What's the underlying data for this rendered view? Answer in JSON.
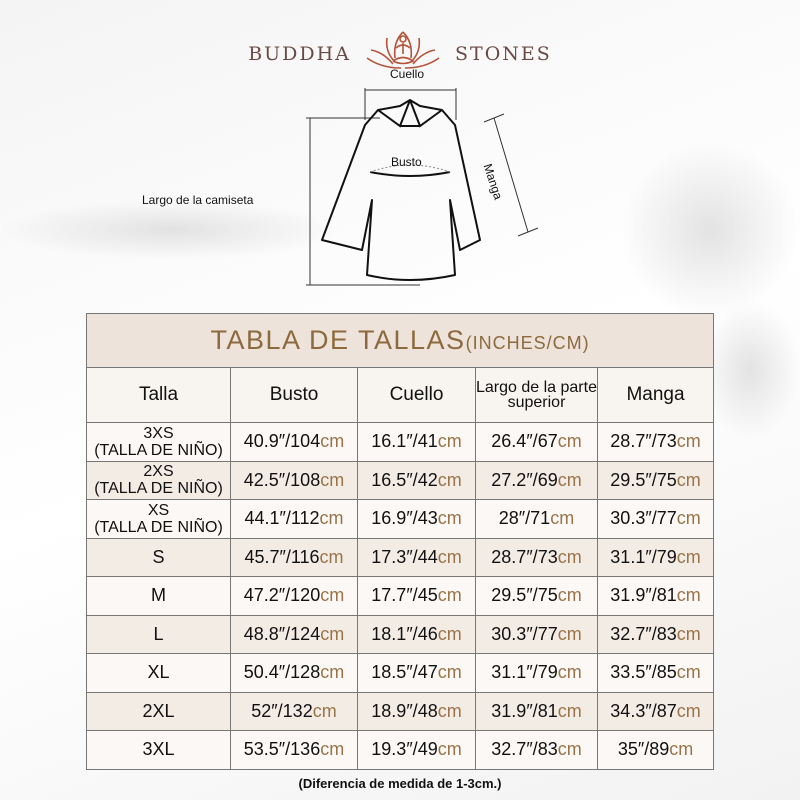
{
  "brand": {
    "left": "BUDDHA",
    "right": "STONES",
    "logo_icon": "lotus-meditation-icon",
    "colors": {
      "text": "#6a4a44",
      "logo": "#b5543a"
    }
  },
  "diagram": {
    "neck": "Cuello",
    "bust": "Busto",
    "sleeve": "Manga",
    "length": "Largo de la camiseta"
  },
  "table": {
    "title": "TABLA DE TALLAS",
    "title_units": "(INCHES/CM)",
    "headers": [
      "Talla",
      "Busto",
      "Cuello",
      "Largo de la parte superior",
      "Manga"
    ],
    "unit": "cm",
    "rows": [
      {
        "size": "3XS",
        "sub": "(TALLA DE NIÑO)",
        "cells": [
          "40.9″/104",
          "16.1″/41",
          "26.4″/67",
          "28.7″/73"
        ]
      },
      {
        "size": "2XS",
        "sub": "(TALLA DE NIÑO)",
        "cells": [
          "42.5″/108",
          "16.5″/42",
          "27.2″/69",
          "29.5″/75"
        ]
      },
      {
        "size": "XS",
        "sub": "(TALLA DE NIÑO)",
        "cells": [
          "44.1″/112",
          "16.9″/43",
          "28″/71",
          "30.3″/77"
        ]
      },
      {
        "size": "S",
        "sub": "",
        "cells": [
          "45.7″/116",
          "17.3″/44",
          "28.7″/73",
          "31.1″/79"
        ]
      },
      {
        "size": "M",
        "sub": "",
        "cells": [
          "47.2″/120",
          "17.7″/45",
          "29.5″/75",
          "31.9″/81"
        ]
      },
      {
        "size": "L",
        "sub": "",
        "cells": [
          "48.8″/124",
          "18.1″/46",
          "30.3″/77",
          "32.7″/83"
        ]
      },
      {
        "size": "XL",
        "sub": "",
        "cells": [
          "50.4″/128",
          "18.5″/47",
          "31.1″/79",
          "33.5″/85"
        ]
      },
      {
        "size": "2XL",
        "sub": "",
        "cells": [
          "52″/132",
          "18.9″/48",
          "31.9″/81",
          "34.3″/87"
        ]
      },
      {
        "size": "3XL",
        "sub": "",
        "cells": [
          "53.5″/136",
          "19.3″/49",
          "32.7″/83",
          "35″/89"
        ]
      }
    ],
    "colors": {
      "title": "#8d6a3e",
      "unit": "#9a7448",
      "title_bg": "#ede3da"
    }
  },
  "note": "(Diferencia de medida de 1-3cm.)"
}
